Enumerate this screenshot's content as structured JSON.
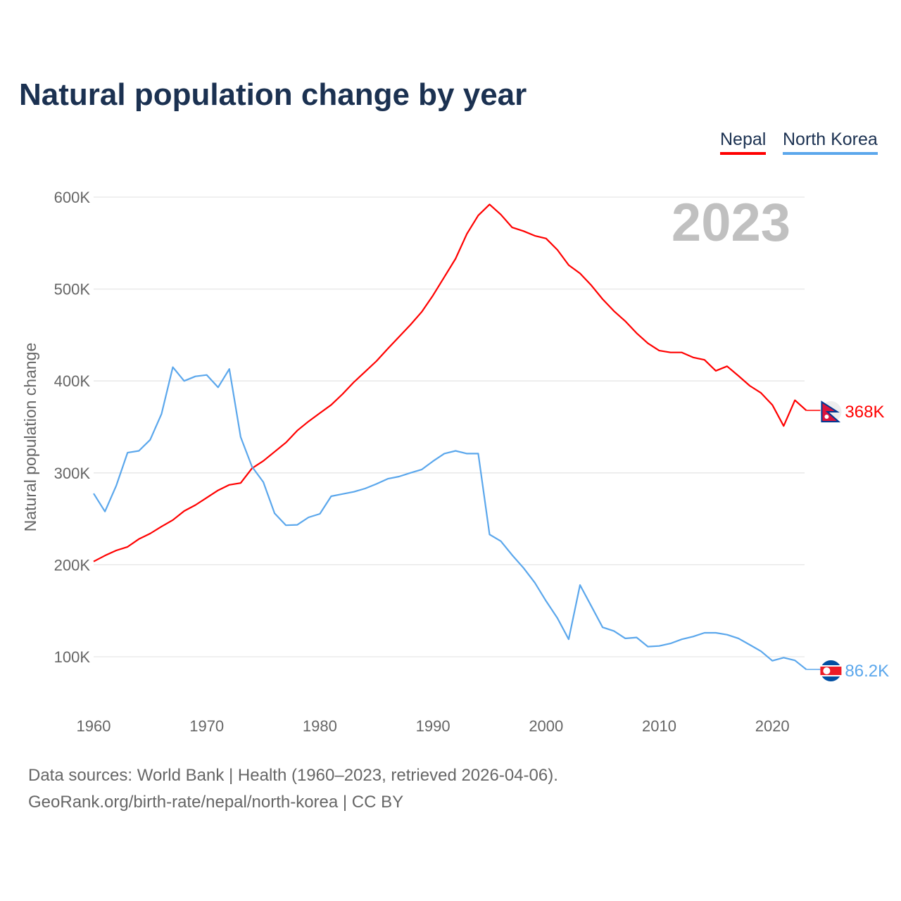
{
  "title": "Natural population change by year",
  "legend": [
    {
      "label": "Nepal",
      "color": "#ff0000"
    },
    {
      "label": "North Korea",
      "color": "#5ba7ec"
    }
  ],
  "year_label": "2023",
  "source": {
    "line1": "Data sources: World Bank | Health (1960–2023, retrieved 2026-04-06).",
    "line2": "GeoRank.org/birth-rate/nepal/north-korea | CC BY"
  },
  "chart_data": {
    "type": "line",
    "title": "Natural population change by year",
    "xlabel": "",
    "ylabel": "Natural population change",
    "xlim": [
      1960,
      2023
    ],
    "ylim": [
      50000,
      600000
    ],
    "grid": true,
    "legend_position": "top-right",
    "x_ticks": [
      "1960",
      "1970",
      "1980",
      "1990",
      "2000",
      "2010",
      "2020"
    ],
    "y_ticks": [
      "100K",
      "200K",
      "300K",
      "400K",
      "500K",
      "600K"
    ],
    "x": [
      1960,
      1961,
      1962,
      1963,
      1964,
      1965,
      1966,
      1967,
      1968,
      1969,
      1970,
      1971,
      1972,
      1973,
      1974,
      1975,
      1976,
      1977,
      1978,
      1979,
      1980,
      1981,
      1982,
      1983,
      1984,
      1985,
      1986,
      1987,
      1988,
      1989,
      1990,
      1991,
      1992,
      1993,
      1994,
      1995,
      1996,
      1997,
      1998,
      1999,
      2000,
      2001,
      2002,
      2003,
      2004,
      2005,
      2006,
      2007,
      2008,
      2009,
      2010,
      2011,
      2012,
      2013,
      2014,
      2015,
      2016,
      2017,
      2018,
      2019,
      2020,
      2021,
      2022,
      2023
    ],
    "series": [
      {
        "name": "Nepal",
        "color": "#ff0000",
        "end_label": "368K",
        "values": [
          203600,
          210000,
          215600,
          219500,
          228000,
          234000,
          241600,
          248700,
          258500,
          265000,
          273000,
          281000,
          287000,
          289000,
          305000,
          313000,
          323000,
          333000,
          346000,
          356000,
          365000,
          374000,
          385600,
          398600,
          410000,
          421600,
          435000,
          448000,
          461000,
          475000,
          493000,
          513000,
          533000,
          560000,
          580000,
          592000,
          581000,
          567000,
          563000,
          558000,
          555000,
          542600,
          526000,
          517000,
          504000,
          489000,
          476000,
          465000,
          452000,
          441000,
          433000,
          431000,
          431000,
          425600,
          423000,
          411000,
          416000,
          405600,
          394800,
          387000,
          374000,
          351000,
          379000,
          368000
        ]
      },
      {
        "name": "North Korea",
        "color": "#5ba7ec",
        "end_label": "86.2K",
        "values": [
          277600,
          258000,
          286000,
          322000,
          324000,
          336000,
          364000,
          415000,
          400000,
          405000,
          406500,
          393000,
          413000,
          339000,
          306700,
          290000,
          256000,
          243000,
          243500,
          251600,
          255400,
          274600,
          277000,
          279400,
          283000,
          288000,
          293600,
          296000,
          300000,
          303600,
          312700,
          321000,
          324000,
          321000,
          321000,
          233000,
          225700,
          210600,
          196600,
          180600,
          160600,
          142000,
          119000,
          178000,
          155000,
          132000,
          128000,
          120000,
          121000,
          111000,
          111700,
          114500,
          119000,
          122000,
          126000,
          126000,
          124000,
          120000,
          113000,
          106000,
          95600,
          99000,
          96000,
          86200
        ]
      }
    ]
  }
}
